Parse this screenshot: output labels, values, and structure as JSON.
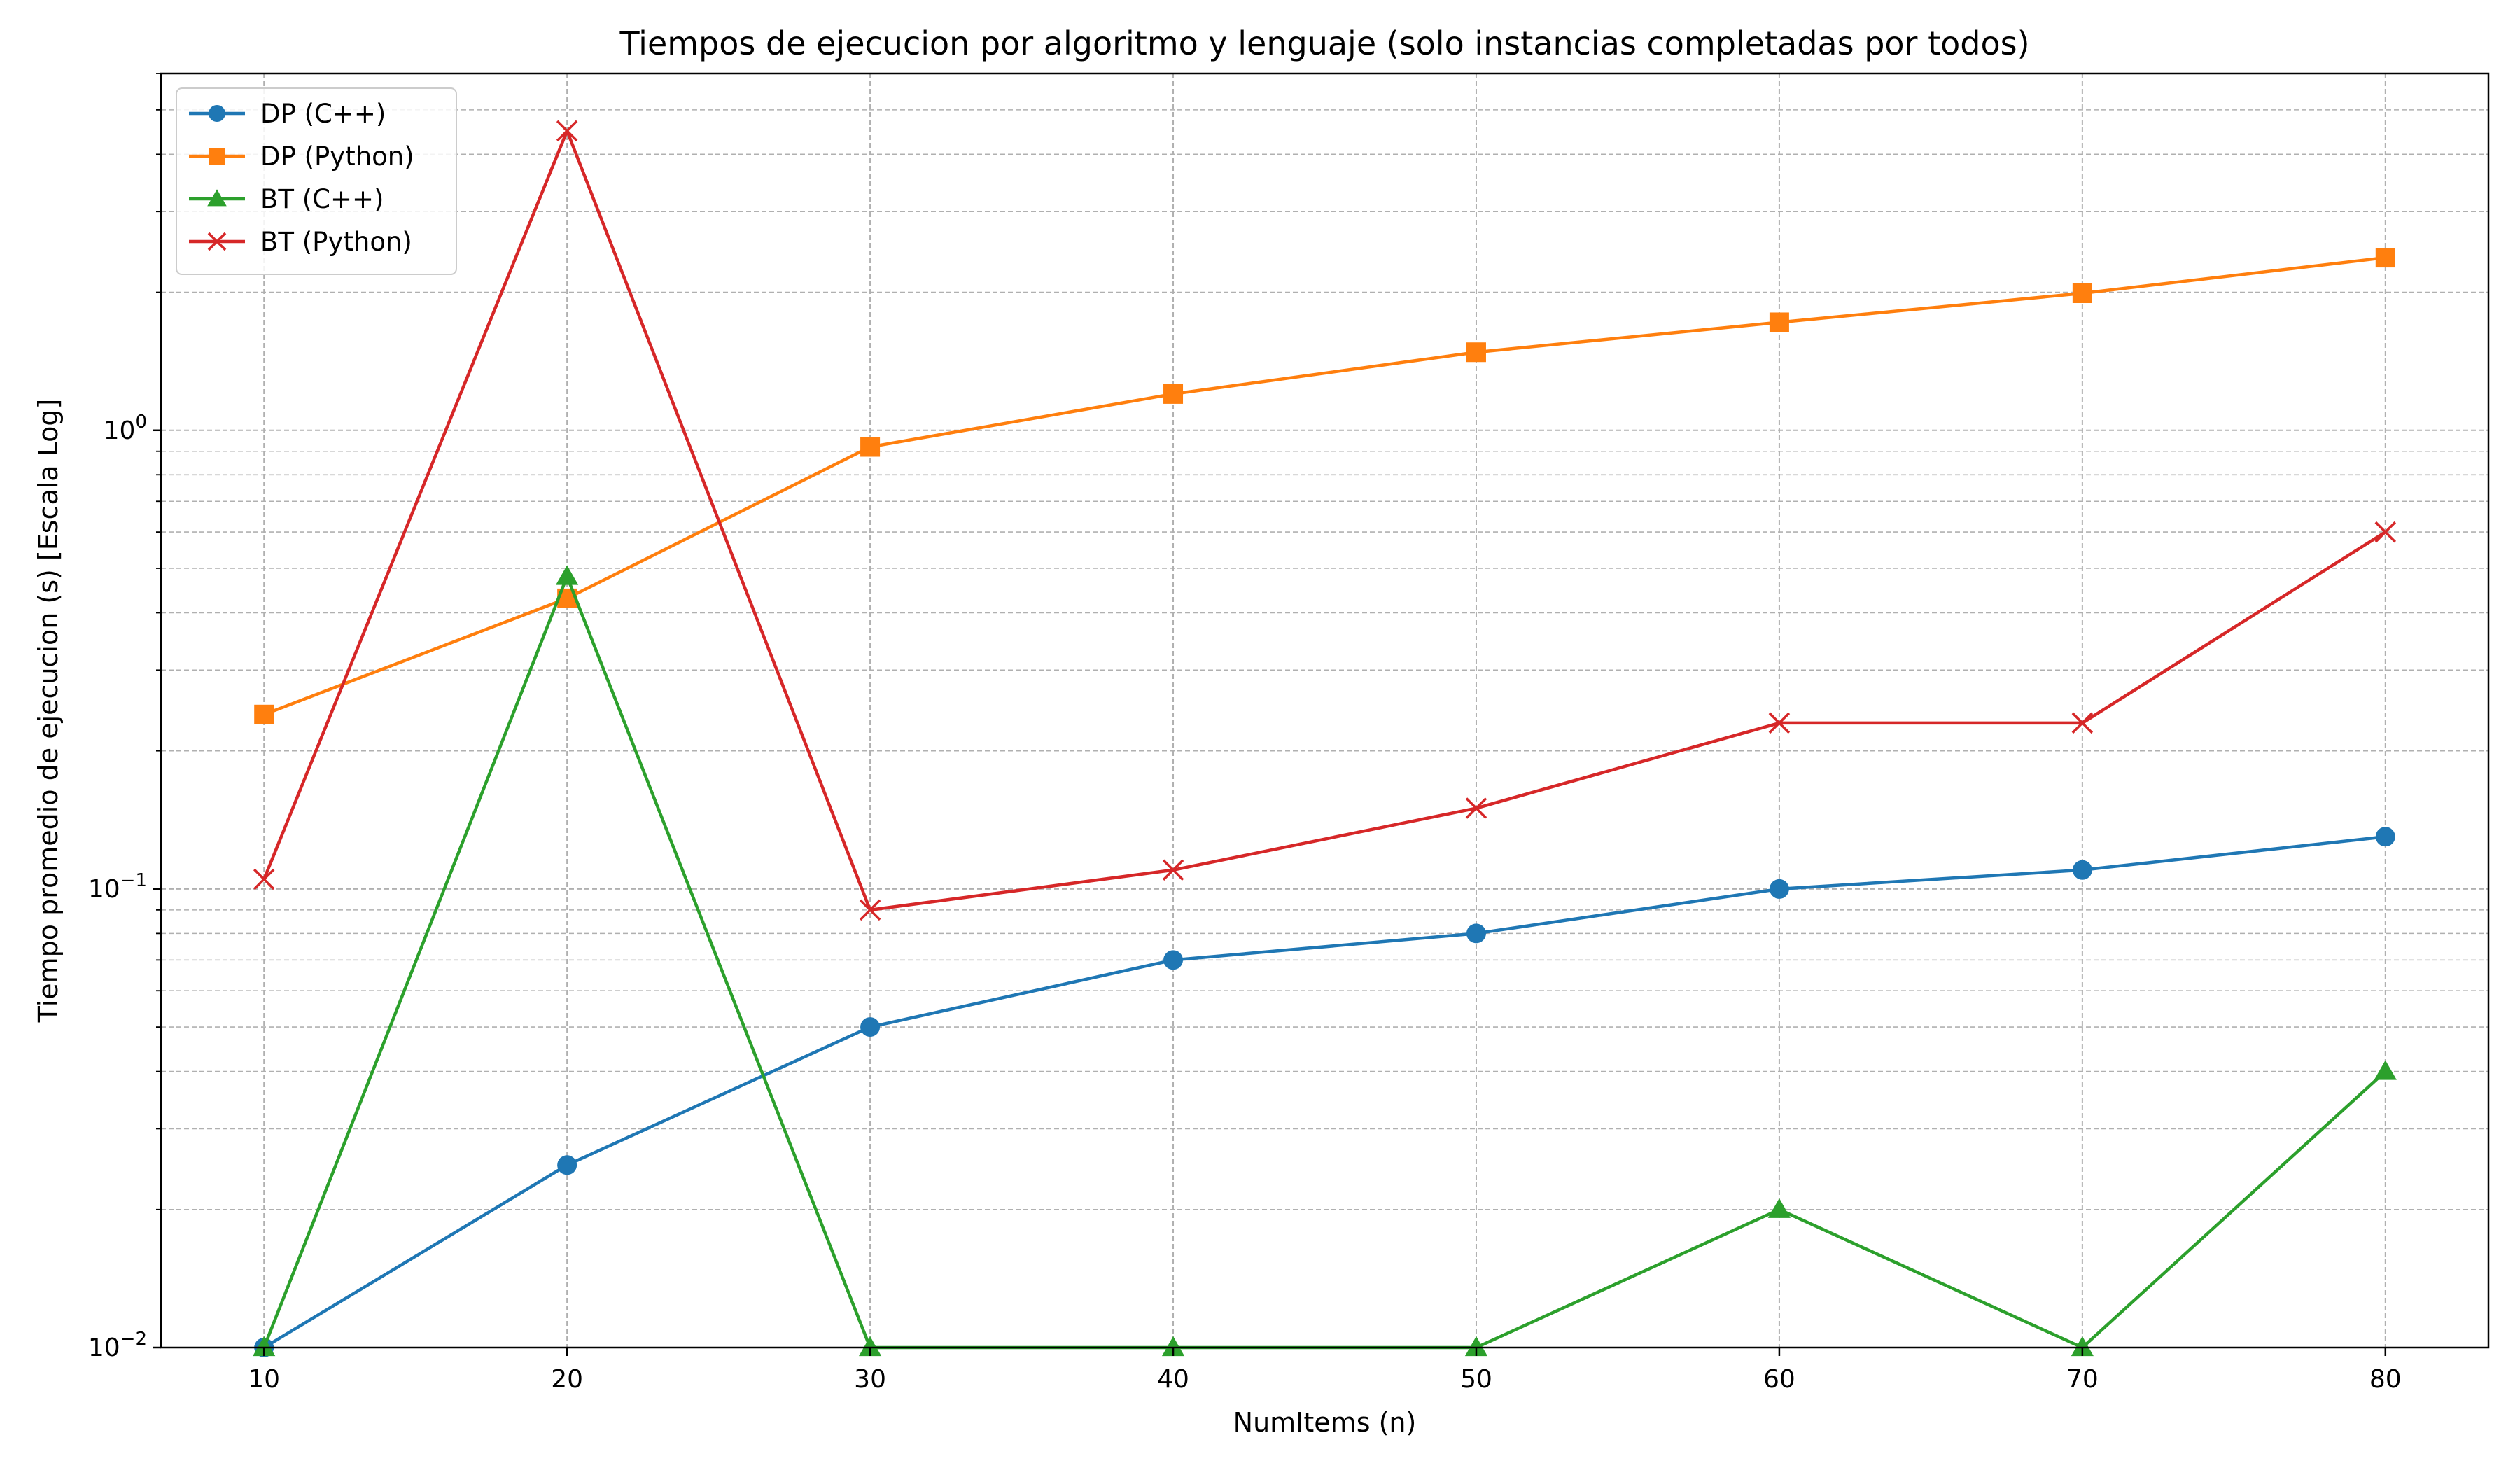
{
  "chart_data": {
    "type": "line",
    "title": "Tiempos de ejecucion por algoritmo y lenguaje (solo instancias completadas por todos)",
    "xlabel": "NumItems (n)",
    "ylabel": "Tiempo promedio de ejecucion (s) [Escala Log]",
    "x": [
      10,
      20,
      30,
      40,
      50,
      60,
      70,
      80
    ],
    "xlim": [
      6.6,
      83.4
    ],
    "ylim": [
      0.01,
      6.0
    ],
    "yscale": "log",
    "x_ticks": [
      "10",
      "20",
      "30",
      "40",
      "50",
      "60",
      "70",
      "80"
    ],
    "y_tick_values": [
      0.01,
      0.1,
      1
    ],
    "y_tick_labels": [
      {
        "base": "10",
        "exp": "−2"
      },
      {
        "base": "10",
        "exp": "−1"
      },
      {
        "base": "10",
        "exp": "0"
      }
    ],
    "grid": true,
    "legend_position": "top-left",
    "series": [
      {
        "name": "DP (C++)",
        "color": "#1f77b4",
        "marker": "circle",
        "values": [
          0.01,
          0.025,
          0.05,
          0.07,
          0.08,
          0.1,
          0.11,
          0.13
        ]
      },
      {
        "name": "DP (Python)",
        "color": "#ff7f0e",
        "marker": "square",
        "values": [
          0.24,
          0.43,
          0.92,
          1.2,
          1.48,
          1.72,
          1.99,
          2.38
        ]
      },
      {
        "name": "BT (C++)",
        "color": "#2ca02c",
        "marker": "triangle",
        "values": [
          0.01,
          0.48,
          0.01,
          0.01,
          0.01,
          0.02,
          0.01,
          0.04
        ]
      },
      {
        "name": "BT (Python)",
        "color": "#d62728",
        "marker": "x",
        "values": [
          0.105,
          4.5,
          0.09,
          0.11,
          0.15,
          0.23,
          0.23,
          0.6
        ]
      }
    ]
  }
}
